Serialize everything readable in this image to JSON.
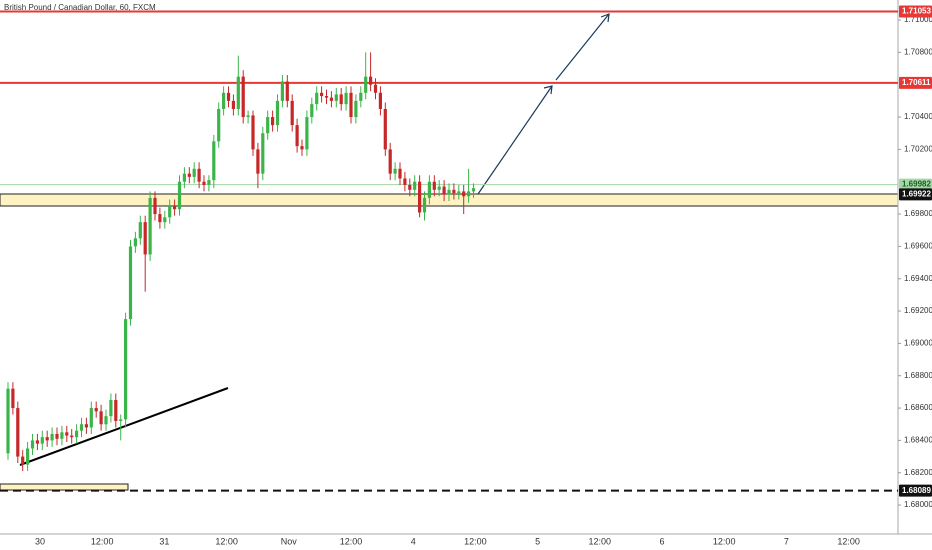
{
  "chart_data": {
    "type": "candlestick",
    "title": "British Pound / Canadian Dollar, 60, FXCM",
    "up_color": "#3bb54a",
    "down_color": "#c62828",
    "ylim": [
      1.67821,
      1.71124
    ],
    "yticks": [
      {
        "value": 1.71,
        "label": "1.71000"
      },
      {
        "value": 1.708,
        "label": "1.70800"
      },
      {
        "value": 1.704,
        "label": "1.70400"
      },
      {
        "value": 1.702,
        "label": "1.70200"
      },
      {
        "value": 1.698,
        "label": "1.69800"
      },
      {
        "value": 1.696,
        "label": "1.69600"
      },
      {
        "value": 1.694,
        "label": "1.69400"
      },
      {
        "value": 1.692,
        "label": "1.69200"
      },
      {
        "value": 1.69,
        "label": "1.69000"
      },
      {
        "value": 1.688,
        "label": "1.68800"
      },
      {
        "value": 1.686,
        "label": "1.68600"
      },
      {
        "value": 1.684,
        "label": "1.68400"
      },
      {
        "value": 1.682,
        "label": "1.68200"
      },
      {
        "value": 1.68,
        "label": "1.68000"
      }
    ],
    "x": [
      "30",
      "12:00",
      "31",
      "12:00",
      "Nov",
      "12:00",
      "4",
      "12:00",
      "5",
      "12:00",
      "6",
      "12:00",
      "7",
      "12:00"
    ],
    "levels": [
      {
        "value": 1.71053,
        "color": "#e53935",
        "style": "solid",
        "text_color": "#ffffff"
      },
      {
        "value": 1.70611,
        "color": "#e53935",
        "style": "solid",
        "text_color": "#ffffff"
      },
      {
        "value": 1.69982,
        "color": "#a5d6a7",
        "style": "thin",
        "text_color": "#1b5e20"
      },
      {
        "value": 1.69922,
        "color": "#111111",
        "style": "none",
        "text_color": "#ffffff"
      },
      {
        "value": 1.68089,
        "color": "#111111",
        "style": "dashed",
        "text_color": "#ffffff"
      }
    ],
    "candles": [
      [
        1.6832,
        1.6876,
        1.6828,
        1.6872
      ],
      [
        1.6872,
        1.6876,
        1.6856,
        1.686
      ],
      [
        1.686,
        1.6864,
        1.6826,
        1.683
      ],
      [
        1.683,
        1.6834,
        1.6821,
        1.6825
      ],
      [
        1.6825,
        1.6839,
        1.6821,
        1.6835
      ],
      [
        1.6835,
        1.6844,
        1.6831,
        1.684
      ],
      [
        1.684,
        1.6844,
        1.6834,
        1.6838
      ],
      [
        1.6838,
        1.6846,
        1.6834,
        1.6842
      ],
      [
        1.6842,
        1.6846,
        1.6836,
        1.684
      ],
      [
        1.684,
        1.6848,
        1.6836,
        1.6844
      ],
      [
        1.6844,
        1.6848,
        1.6837,
        1.6841
      ],
      [
        1.6841,
        1.6849,
        1.6837,
        1.6845
      ],
      [
        1.6845,
        1.6849,
        1.6839,
        1.6843
      ],
      [
        1.6843,
        1.6847,
        1.6838,
        1.6842
      ],
      [
        1.6842,
        1.685,
        1.6838,
        1.6846
      ],
      [
        1.6846,
        1.6854,
        1.6842,
        1.685
      ],
      [
        1.685,
        1.6854,
        1.6844,
        1.6848
      ],
      [
        1.6848,
        1.6864,
        1.6844,
        1.686
      ],
      [
        1.686,
        1.6864,
        1.6854,
        1.6858
      ],
      [
        1.6858,
        1.6862,
        1.6846,
        1.685
      ],
      [
        1.685,
        1.6859,
        1.6846,
        1.6855
      ],
      [
        1.6855,
        1.6869,
        1.6851,
        1.6865
      ],
      [
        1.6865,
        1.6869,
        1.6848,
        1.6852
      ],
      [
        1.6852,
        1.6856,
        1.684,
        1.6853
      ],
      [
        1.6853,
        1.6919,
        1.6848,
        1.6915
      ],
      [
        1.6915,
        1.6964,
        1.6911,
        1.696
      ],
      [
        1.696,
        1.6969,
        1.6956,
        1.6965
      ],
      [
        1.6965,
        1.6979,
        1.6961,
        1.6975
      ],
      [
        1.6975,
        1.6979,
        1.6932,
        1.6955
      ],
      [
        1.6955,
        1.6994,
        1.6951,
        1.699
      ],
      [
        1.699,
        1.6994,
        1.6976,
        1.698
      ],
      [
        1.698,
        1.6984,
        1.6971,
        1.6975
      ],
      [
        1.6975,
        1.6982,
        1.6971,
        1.6978
      ],
      [
        1.6978,
        1.6989,
        1.6974,
        1.6985
      ],
      [
        1.6985,
        1.6989,
        1.6979,
        1.6983
      ],
      [
        1.6983,
        1.7004,
        1.6979,
        1.7
      ],
      [
        1.7,
        1.7009,
        1.6996,
        1.7005
      ],
      [
        1.7005,
        1.7009,
        1.6999,
        1.7003
      ],
      [
        1.7003,
        1.7012,
        1.6999,
        1.7008
      ],
      [
        1.7008,
        1.7012,
        1.6996,
        1.7
      ],
      [
        1.7,
        1.7004,
        1.6994,
        1.6998
      ],
      [
        1.6998,
        1.7004,
        1.6994,
        1.7001
      ],
      [
        1.7001,
        1.7029,
        1.6996,
        1.7025
      ],
      [
        1.7025,
        1.7049,
        1.7021,
        1.7045
      ],
      [
        1.7045,
        1.7059,
        1.7041,
        1.7055
      ],
      [
        1.7055,
        1.7059,
        1.7046,
        1.705
      ],
      [
        1.705,
        1.7054,
        1.7041,
        1.7045
      ],
      [
        1.7045,
        1.7078,
        1.7041,
        1.7065
      ],
      [
        1.7065,
        1.7069,
        1.7036,
        1.704
      ],
      [
        1.704,
        1.7044,
        1.7036,
        1.7041
      ],
      [
        1.7041,
        1.7044,
        1.7016,
        1.702
      ],
      [
        1.702,
        1.7024,
        1.6996,
        1.7005
      ],
      [
        1.7005,
        1.7034,
        1.7001,
        1.703
      ],
      [
        1.703,
        1.7044,
        1.7026,
        1.704
      ],
      [
        1.704,
        1.7044,
        1.7031,
        1.7035
      ],
      [
        1.7035,
        1.7054,
        1.7031,
        1.705
      ],
      [
        1.705,
        1.7066,
        1.7046,
        1.7062
      ],
      [
        1.7062,
        1.7066,
        1.7046,
        1.705
      ],
      [
        1.705,
        1.7054,
        1.7031,
        1.7035
      ],
      [
        1.7035,
        1.7039,
        1.7018,
        1.7022
      ],
      [
        1.7022,
        1.7026,
        1.7016,
        1.702
      ],
      [
        1.702,
        1.7044,
        1.7016,
        1.704
      ],
      [
        1.704,
        1.7052,
        1.7036,
        1.7048
      ],
      [
        1.7048,
        1.7059,
        1.7044,
        1.7055
      ],
      [
        1.7055,
        1.7059,
        1.7049,
        1.7053
      ],
      [
        1.7053,
        1.7057,
        1.7048,
        1.7052
      ],
      [
        1.7052,
        1.7056,
        1.7046,
        1.705
      ],
      [
        1.705,
        1.7058,
        1.7046,
        1.7054
      ],
      [
        1.7054,
        1.7058,
        1.7044,
        1.7048
      ],
      [
        1.7048,
        1.7059,
        1.7044,
        1.7055
      ],
      [
        1.7055,
        1.7059,
        1.7036,
        1.704
      ],
      [
        1.704,
        1.7054,
        1.7036,
        1.705
      ],
      [
        1.705,
        1.7059,
        1.7046,
        1.7055
      ],
      [
        1.7055,
        1.708,
        1.7051,
        1.7065
      ],
      [
        1.7065,
        1.708,
        1.7056,
        1.706
      ],
      [
        1.706,
        1.7064,
        1.7051,
        1.7055
      ],
      [
        1.7055,
        1.7059,
        1.7041,
        1.7045
      ],
      [
        1.7045,
        1.7049,
        1.7016,
        1.702
      ],
      [
        1.702,
        1.7024,
        1.7001,
        1.7005
      ],
      [
        1.7005,
        1.7012,
        1.7001,
        1.7008
      ],
      [
        1.7008,
        1.7012,
        1.6998,
        1.7002
      ],
      [
        1.7002,
        1.7006,
        1.6994,
        1.6998
      ],
      [
        1.6998,
        1.7002,
        1.6991,
        1.6995
      ],
      [
        1.6995,
        1.7004,
        1.6991,
        1.7
      ],
      [
        1.7,
        1.7004,
        1.6978,
        1.6981
      ],
      [
        1.6981,
        1.6994,
        1.6976,
        1.699
      ],
      [
        1.699,
        1.7004,
        1.6986,
        1.7
      ],
      [
        1.7,
        1.7004,
        1.6991,
        1.6995
      ],
      [
        1.6995,
        1.7001,
        1.6991,
        1.6997
      ],
      [
        1.6997,
        1.7001,
        1.6988,
        1.6992
      ],
      [
        1.6992,
        1.6999,
        1.6988,
        1.6995
      ],
      [
        1.6995,
        1.6999,
        1.6989,
        1.6993
      ],
      [
        1.6993,
        1.6998,
        1.6989,
        1.6994
      ],
      [
        1.6994,
        1.6998,
        1.698,
        1.6991
      ],
      [
        1.6991,
        1.7008,
        1.6987,
        1.6994
      ],
      [
        1.6994,
        1.6999,
        1.699,
        1.6996
      ]
    ]
  }
}
